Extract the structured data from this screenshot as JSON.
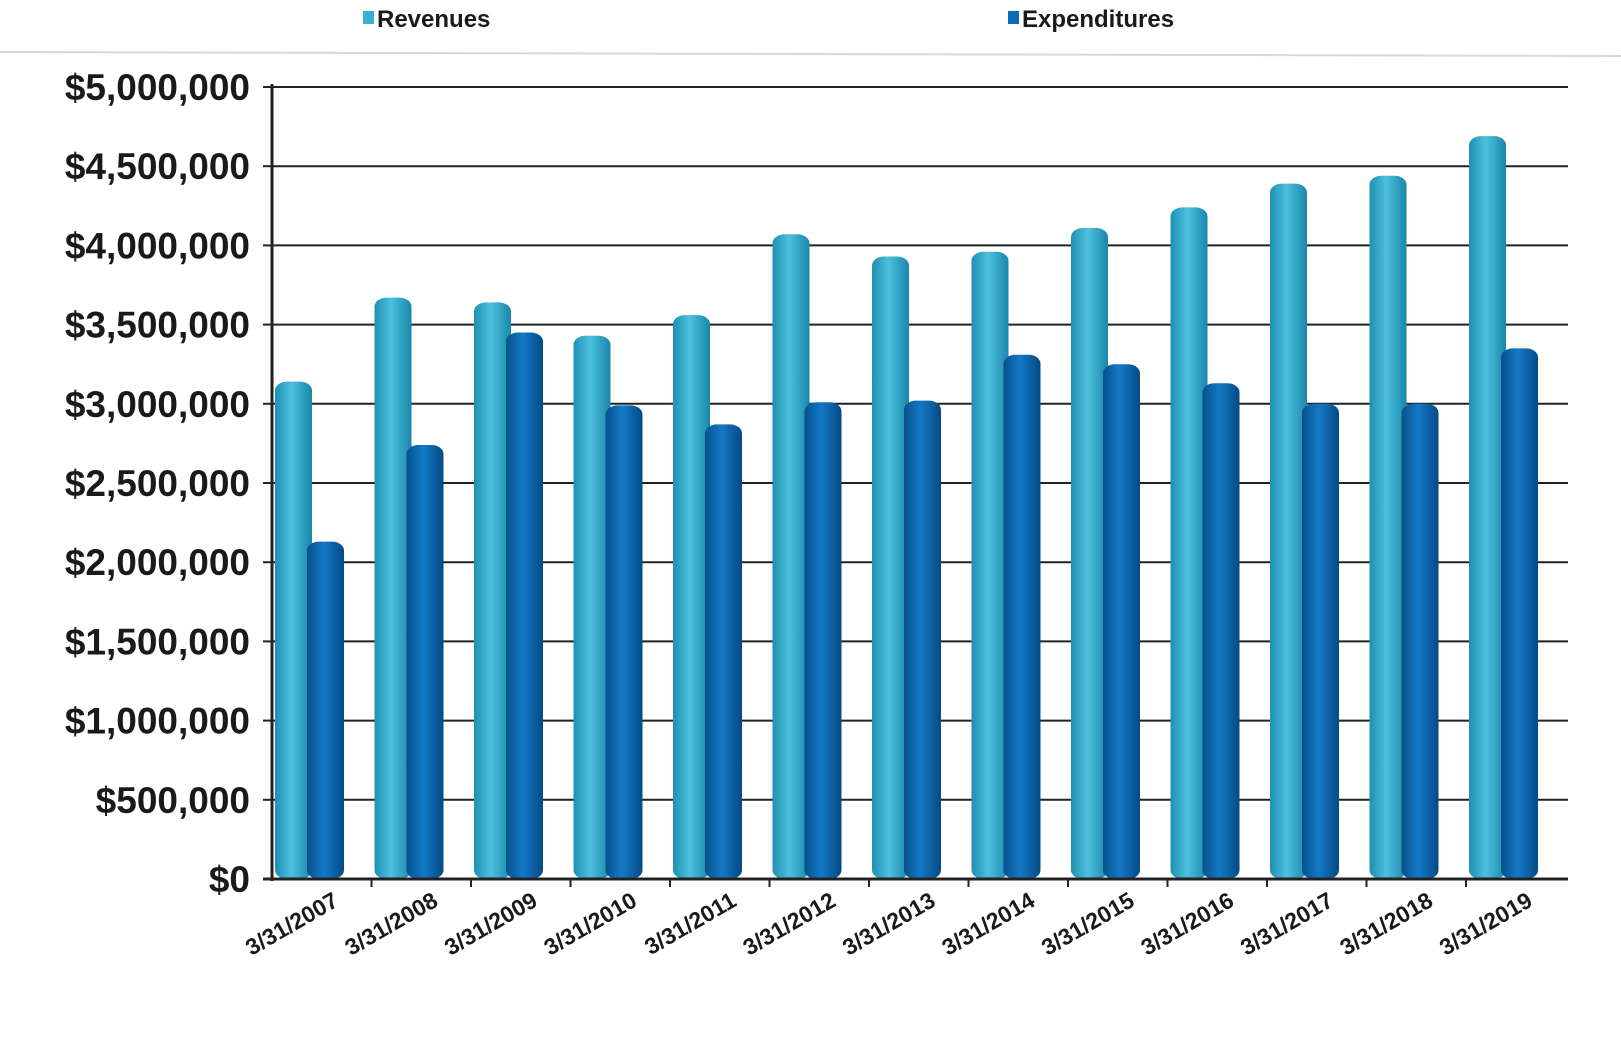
{
  "chart_data": {
    "type": "bar",
    "title": "",
    "xlabel": "",
    "ylabel": "",
    "categories": [
      "3/31/2007",
      "3/31/2008",
      "3/31/2009",
      "3/31/2010",
      "3/31/2011",
      "3/31/2012",
      "3/31/2013",
      "3/31/2014",
      "3/31/2015",
      "3/31/2016",
      "3/31/2017",
      "3/31/2018",
      "3/31/2019"
    ],
    "series": [
      {
        "name": "Revenues",
        "color": "#3bb0d0",
        "values": [
          3140000,
          3670000,
          3640000,
          3430000,
          3560000,
          4070000,
          3930000,
          3960000,
          4110000,
          4240000,
          4390000,
          4440000,
          4690000
        ]
      },
      {
        "name": "Expenditures",
        "color": "#0a6cb8",
        "values": [
          2130000,
          2740000,
          3450000,
          2990000,
          2870000,
          3010000,
          3020000,
          3310000,
          3250000,
          3130000,
          3000000,
          3000000,
          3350000
        ]
      }
    ],
    "ylim": [
      0,
      5000000
    ],
    "yticks": [
      0,
      500000,
      1000000,
      1500000,
      2000000,
      2500000,
      3000000,
      3500000,
      4000000,
      4500000,
      5000000
    ],
    "ytick_labels": [
      "$0",
      "$500,000",
      "$1,000,000",
      "$1,500,000",
      "$2,000,000",
      "$2,500,000",
      "$3,000,000",
      "$3,500,000",
      "$4,000,000",
      "$4,500,000",
      "$5,000,000"
    ],
    "grid": true,
    "legend_position": "top"
  }
}
